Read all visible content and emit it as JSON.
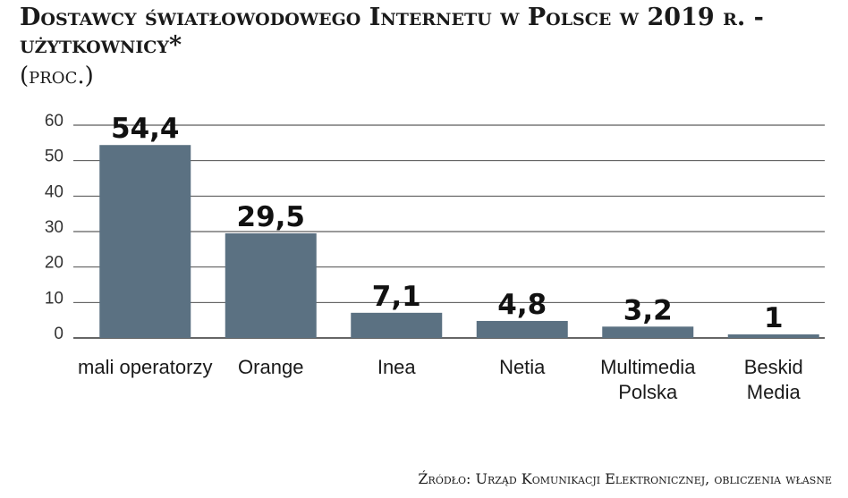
{
  "chart_data": {
    "type": "bar",
    "title": "Dostawcy światłowodowego Internetu w Polsce w 2019 r. - użytkownicy*",
    "subtitle": "(proc.)",
    "categories": [
      "mali operatorzy",
      "Orange",
      "Inea",
      "Netia",
      "Multimedia\nPolska",
      "Beskid\nMedia"
    ],
    "values": [
      54.4,
      29.5,
      7.1,
      4.8,
      3.2,
      1
    ],
    "value_labels": [
      "54,4",
      "29,5",
      "7,1",
      "4,8",
      "3,2",
      "1"
    ],
    "yticks": [
      "0",
      "10",
      "20",
      "30",
      "40",
      "50",
      "60"
    ],
    "ylim": [
      0,
      60
    ],
    "xlabel": "",
    "ylabel": "",
    "grid": true,
    "bar_color": "#5b7182",
    "grid_color": "#333333",
    "source": "Źródło: Urząd Komunikacji Elektronicznej, obliczenia własne"
  }
}
